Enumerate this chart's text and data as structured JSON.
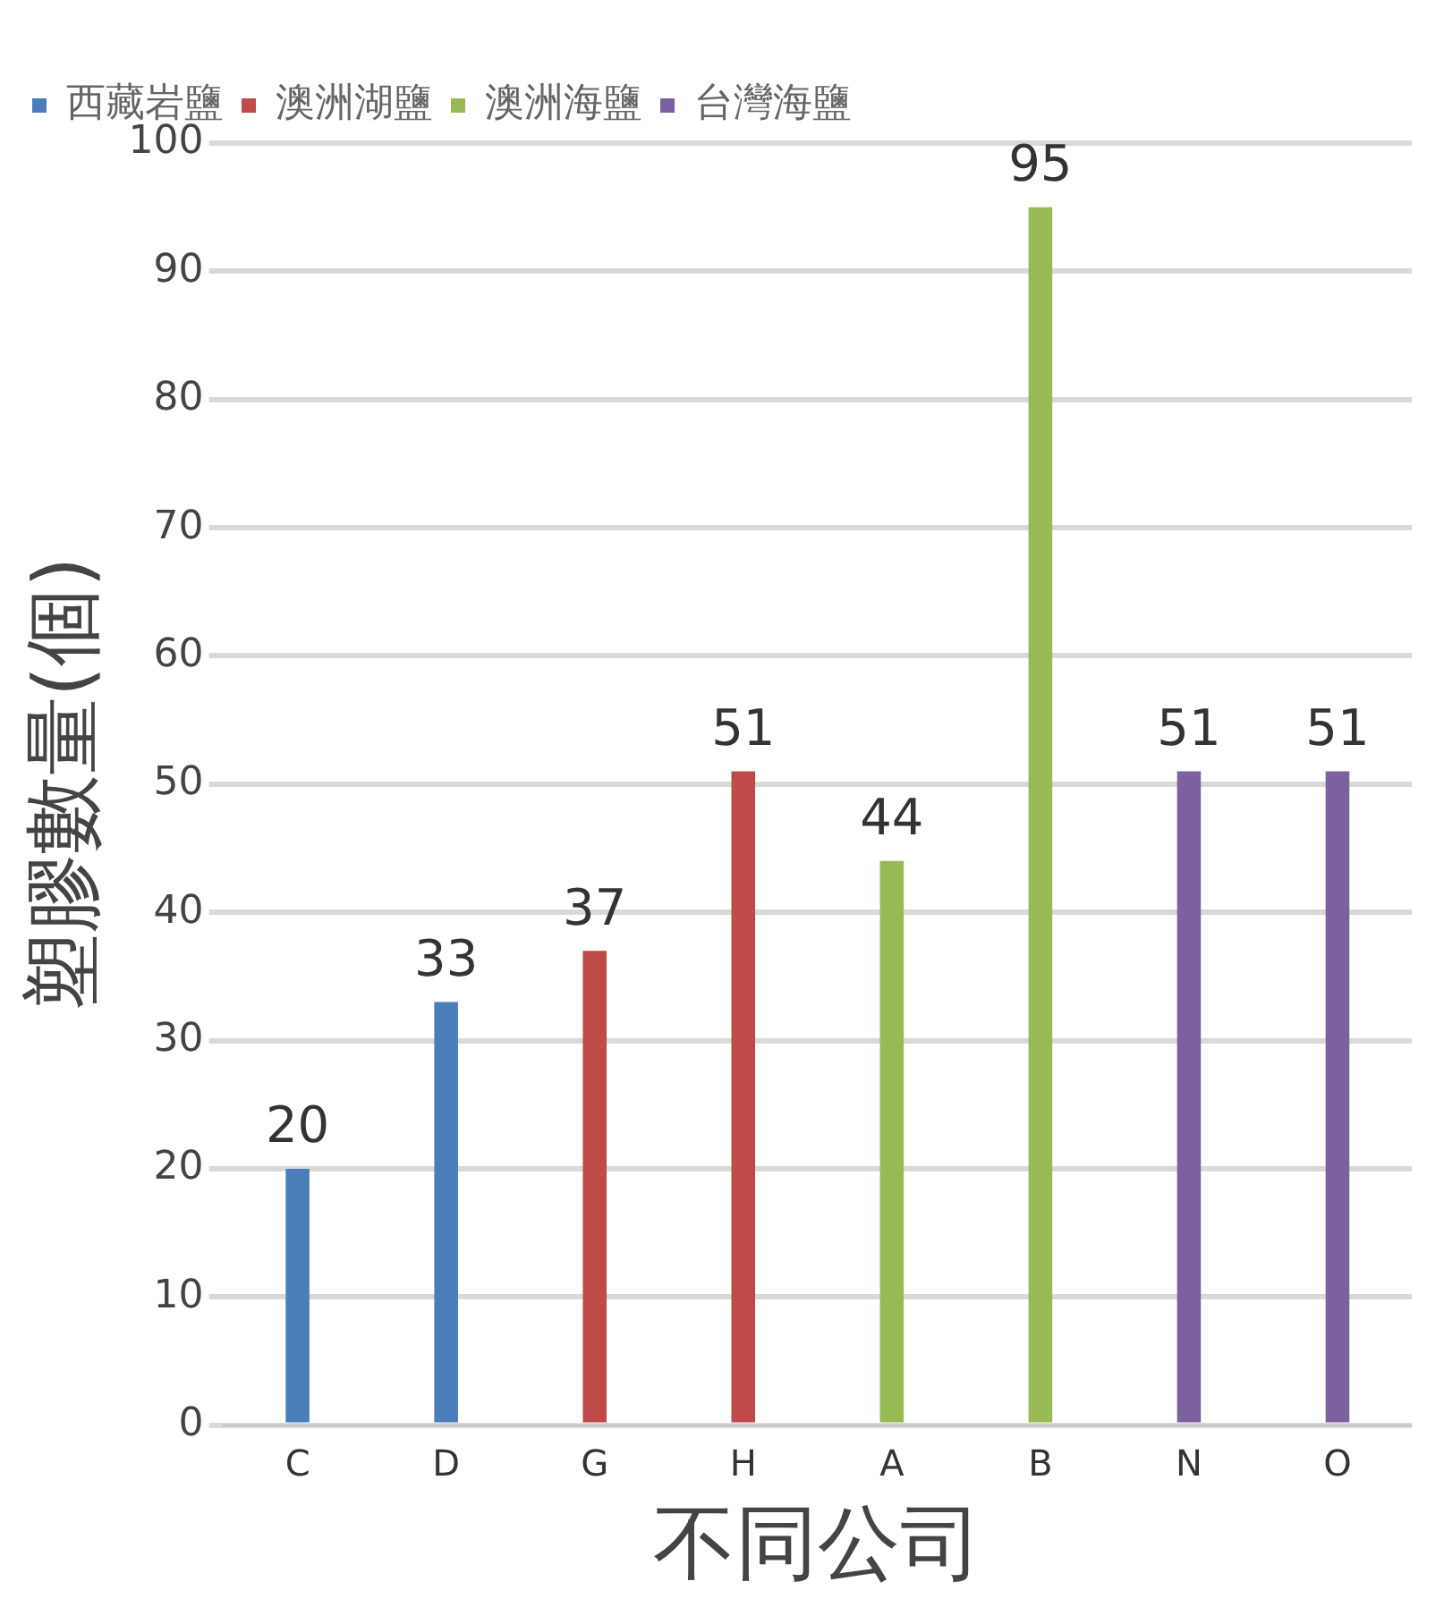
{
  "chart_data": {
    "type": "bar",
    "xlabel": "不同公司",
    "ylabel": "塑膠數量(個)",
    "categories": [
      "C",
      "D",
      "G",
      "H",
      "A",
      "B",
      "N",
      "O"
    ],
    "series": [
      {
        "name": "西藏岩鹽",
        "color": "#4a7ebb",
        "values": [
          20,
          33,
          null,
          null,
          null,
          null,
          null,
          null
        ]
      },
      {
        "name": "澳洲湖鹽",
        "color": "#be4b48",
        "values": [
          null,
          null,
          37,
          51,
          null,
          null,
          null,
          null
        ]
      },
      {
        "name": "澳洲海鹽",
        "color": "#98b954",
        "values": [
          null,
          null,
          null,
          null,
          44,
          95,
          null,
          null
        ]
      },
      {
        "name": "台灣海鹽",
        "color": "#7d60a0",
        "values": [
          null,
          null,
          null,
          null,
          null,
          null,
          51,
          51
        ]
      }
    ],
    "ylim": [
      0,
      100
    ],
    "yticks": [
      0,
      10,
      20,
      30,
      40,
      50,
      60,
      70,
      80,
      90,
      100
    ],
    "grid": "y",
    "legend": "top",
    "data_labels": true
  }
}
